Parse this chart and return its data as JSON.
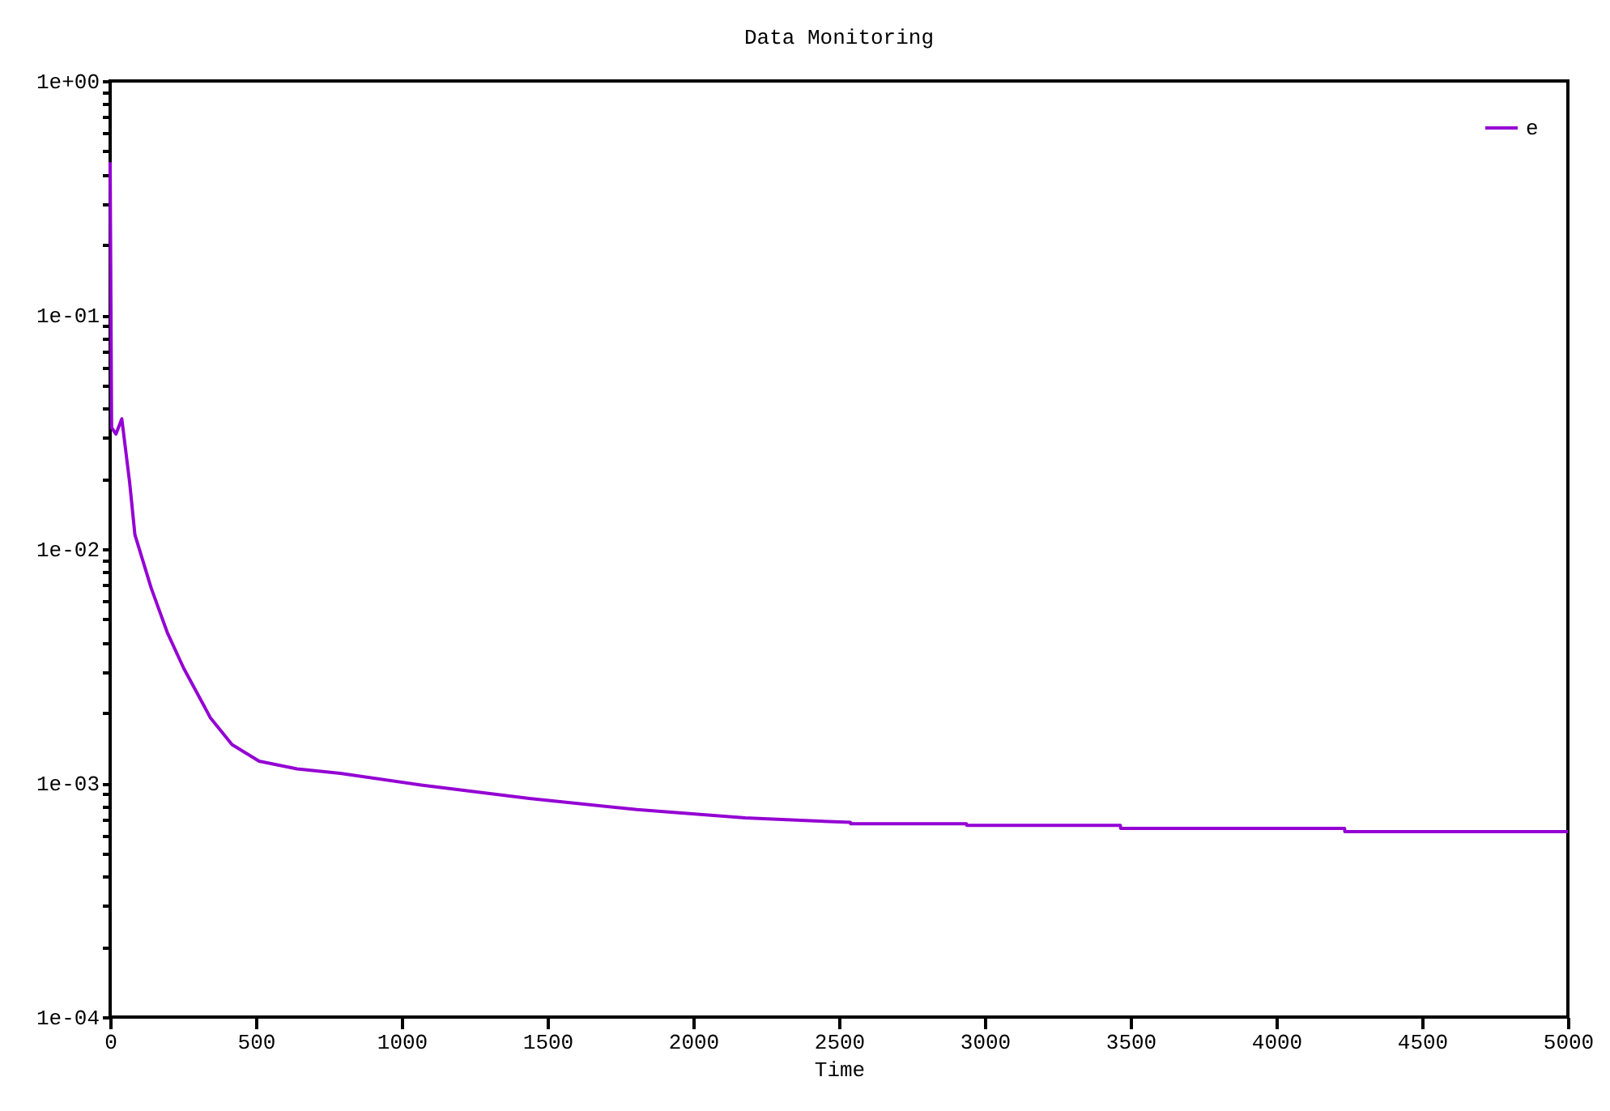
{
  "chart_data": {
    "type": "line",
    "title": "Data Monitoring",
    "xlabel": "Time",
    "series": [
      {
        "name": "e",
        "color": "#9400d3",
        "x": [
          0,
          5,
          20,
          40,
          67,
          85,
          141,
          196,
          252,
          344,
          418,
          511,
          641,
          789,
          1067,
          1437,
          1807,
          2178,
          2400,
          2539,
          2540,
          2937,
          2938,
          3465,
          3466,
          4234,
          4235,
          5000
        ],
        "values": [
          0.45,
          0.033,
          0.031,
          0.036,
          0.0192,
          0.0115,
          0.0068,
          0.0044,
          0.0031,
          0.0019,
          0.00146,
          0.00124,
          0.00115,
          0.0011,
          0.00098,
          0.00086,
          0.00077,
          0.00071,
          0.00069,
          0.00068,
          0.00067,
          0.00067,
          0.00066,
          0.00066,
          0.00064,
          0.00064,
          0.00062,
          0.00062
        ]
      }
    ],
    "xlim": [
      0,
      5000
    ],
    "xticks": [
      0,
      500,
      1000,
      1500,
      2000,
      2500,
      3000,
      3500,
      4000,
      4500,
      5000
    ],
    "ylim": [
      0.0001,
      1
    ],
    "log": "y",
    "yticks": [
      {
        "value": 0.0001,
        "label": "1e-04"
      },
      {
        "value": 0.0002,
        "label": null
      },
      {
        "value": 0.0003,
        "label": null
      },
      {
        "value": 0.0004,
        "label": null
      },
      {
        "value": 0.0005,
        "label": null
      },
      {
        "value": 0.0006,
        "label": null
      },
      {
        "value": 0.0007,
        "label": null
      },
      {
        "value": 0.0008,
        "label": null
      },
      {
        "value": 0.0009,
        "label": null
      },
      {
        "value": 0.001,
        "label": "1e-03"
      },
      {
        "value": 0.002,
        "label": null
      },
      {
        "value": 0.003,
        "label": null
      },
      {
        "value": 0.004,
        "label": null
      },
      {
        "value": 0.005,
        "label": null
      },
      {
        "value": 0.006,
        "label": null
      },
      {
        "value": 0.007,
        "label": null
      },
      {
        "value": 0.008,
        "label": null
      },
      {
        "value": 0.009,
        "label": null
      },
      {
        "value": 0.01,
        "label": "1e-02"
      },
      {
        "value": 0.02,
        "label": null
      },
      {
        "value": 0.03,
        "label": null
      },
      {
        "value": 0.04,
        "label": null
      },
      {
        "value": 0.05,
        "label": null
      },
      {
        "value": 0.06,
        "label": null
      },
      {
        "value": 0.07,
        "label": null
      },
      {
        "value": 0.08,
        "label": null
      },
      {
        "value": 0.09,
        "label": null
      },
      {
        "value": 0.1,
        "label": "1e-01"
      },
      {
        "value": 0.2,
        "label": null
      },
      {
        "value": 0.3,
        "label": null
      },
      {
        "value": 0.4,
        "label": null
      },
      {
        "value": 0.5,
        "label": null
      },
      {
        "value": 0.6,
        "label": null
      },
      {
        "value": 0.7,
        "label": null
      },
      {
        "value": 0.8,
        "label": null
      },
      {
        "value": 0.9,
        "label": null
      },
      {
        "value": 1,
        "label": "1e+00"
      }
    ],
    "grid": false,
    "legend": "top right",
    "marker": "none",
    "line_style": "solid"
  }
}
